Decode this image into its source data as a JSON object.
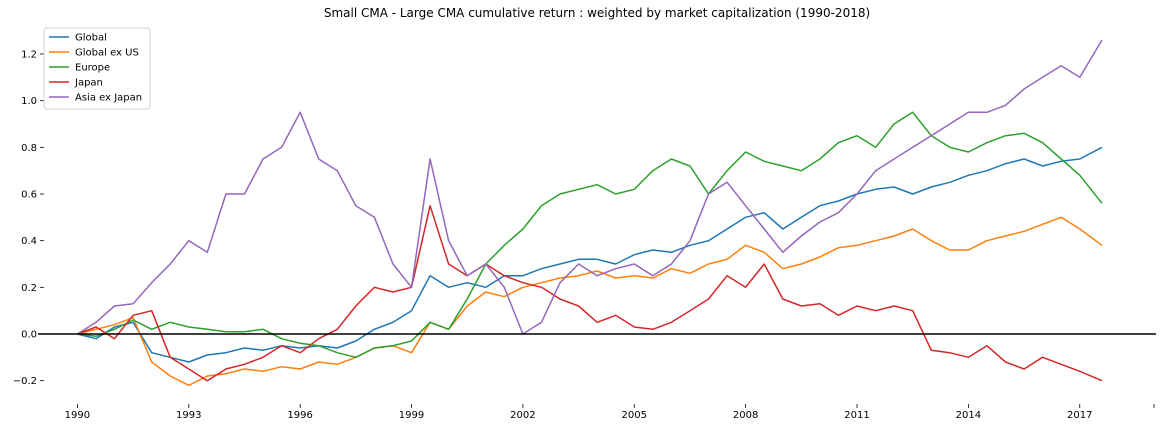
{
  "chart_data": {
    "type": "line",
    "title": "Small CMA - Large CMA cumulative return : weighted by market capitalization (1990-2018)",
    "xlabel": "",
    "ylabel": "",
    "x_range": [
      1989.1,
      2019.0
    ],
    "ylim": [
      -0.3,
      1.32
    ],
    "x_ticks": [
      1990,
      1993,
      1996,
      1999,
      2002,
      2005,
      2008,
      2011,
      2014,
      2017
    ],
    "y_ticks": [
      -0.2,
      0.0,
      0.2,
      0.4,
      0.6,
      0.8,
      1.0,
      1.2
    ],
    "y_tick_labels": [
      "−0.2",
      "0.0",
      "0.2",
      "0.4",
      "0.6",
      "0.8",
      "1.0",
      "1.2"
    ],
    "zero_line": true,
    "grid": false,
    "legend_position": "top-left",
    "series": [
      {
        "name": "Global",
        "color": "#1f77b4",
        "x": [
          1990.0,
          1990.5,
          1991.0,
          1991.5,
          1992.0,
          1992.5,
          1993.0,
          1993.5,
          1994.0,
          1994.5,
          1995.0,
          1995.5,
          1996.0,
          1996.5,
          1997.0,
          1997.5,
          1998.0,
          1998.5,
          1999.0,
          1999.5,
          2000.0,
          2000.5,
          2001.0,
          2001.5,
          2002.0,
          2002.5,
          2003.0,
          2003.5,
          2004.0,
          2004.5,
          2005.0,
          2005.5,
          2006.0,
          2006.5,
          2007.0,
          2007.5,
          2008.0,
          2008.5,
          2009.0,
          2009.5,
          2010.0,
          2010.5,
          2011.0,
          2011.5,
          2012.0,
          2012.5,
          2013.0,
          2013.5,
          2014.0,
          2014.5,
          2015.0,
          2015.5,
          2016.0,
          2016.5,
          2017.0,
          2017.6
        ],
        "values": [
          0.0,
          -0.02,
          0.03,
          0.05,
          -0.08,
          -0.1,
          -0.12,
          -0.09,
          -0.08,
          -0.06,
          -0.07,
          -0.05,
          -0.06,
          -0.05,
          -0.06,
          -0.03,
          0.02,
          0.05,
          0.1,
          0.25,
          0.2,
          0.22,
          0.2,
          0.25,
          0.25,
          0.28,
          0.3,
          0.32,
          0.32,
          0.3,
          0.34,
          0.36,
          0.35,
          0.38,
          0.4,
          0.45,
          0.5,
          0.52,
          0.45,
          0.5,
          0.55,
          0.57,
          0.6,
          0.62,
          0.63,
          0.6,
          0.63,
          0.65,
          0.68,
          0.7,
          0.73,
          0.75,
          0.72,
          0.74,
          0.75,
          0.8
        ]
      },
      {
        "name": "Global ex US",
        "color": "#ff7f0e",
        "x": [
          1990.0,
          1990.5,
          1991.0,
          1991.5,
          1992.0,
          1992.5,
          1993.0,
          1993.5,
          1994.0,
          1994.5,
          1995.0,
          1995.5,
          1996.0,
          1996.5,
          1997.0,
          1997.5,
          1998.0,
          1998.5,
          1999.0,
          1999.5,
          2000.0,
          2000.5,
          2001.0,
          2001.5,
          2002.0,
          2002.5,
          2003.0,
          2003.5,
          2004.0,
          2004.5,
          2005.0,
          2005.5,
          2006.0,
          2006.5,
          2007.0,
          2007.5,
          2008.0,
          2008.5,
          2009.0,
          2009.5,
          2010.0,
          2010.5,
          2011.0,
          2011.5,
          2012.0,
          2012.5,
          2013.0,
          2013.5,
          2014.0,
          2014.5,
          2015.0,
          2015.5,
          2016.0,
          2016.5,
          2017.0,
          2017.6
        ],
        "values": [
          0.0,
          0.02,
          0.04,
          0.07,
          -0.12,
          -0.18,
          -0.22,
          -0.18,
          -0.17,
          -0.15,
          -0.16,
          -0.14,
          -0.15,
          -0.12,
          -0.13,
          -0.1,
          -0.06,
          -0.05,
          -0.08,
          0.05,
          0.02,
          0.12,
          0.18,
          0.16,
          0.2,
          0.22,
          0.24,
          0.25,
          0.27,
          0.24,
          0.25,
          0.24,
          0.28,
          0.26,
          0.3,
          0.32,
          0.38,
          0.35,
          0.28,
          0.3,
          0.33,
          0.37,
          0.38,
          0.4,
          0.42,
          0.45,
          0.4,
          0.36,
          0.36,
          0.4,
          0.42,
          0.44,
          0.47,
          0.5,
          0.45,
          0.38
        ]
      },
      {
        "name": "Europe",
        "color": "#2ca02c",
        "x": [
          1990.0,
          1990.5,
          1991.0,
          1991.5,
          1992.0,
          1992.5,
          1993.0,
          1993.5,
          1994.0,
          1994.5,
          1995.0,
          1995.5,
          1996.0,
          1996.5,
          1997.0,
          1997.5,
          1998.0,
          1998.5,
          1999.0,
          1999.5,
          2000.0,
          2000.5,
          2001.0,
          2001.5,
          2002.0,
          2002.5,
          2003.0,
          2003.5,
          2004.0,
          2004.5,
          2005.0,
          2005.5,
          2006.0,
          2006.5,
          2007.0,
          2007.5,
          2008.0,
          2008.5,
          2009.0,
          2009.5,
          2010.0,
          2010.5,
          2011.0,
          2011.5,
          2012.0,
          2012.5,
          2013.0,
          2013.5,
          2014.0,
          2014.5,
          2015.0,
          2015.5,
          2016.0,
          2016.5,
          2017.0,
          2017.6
        ],
        "values": [
          0.0,
          -0.01,
          0.02,
          0.06,
          0.02,
          0.05,
          0.03,
          0.02,
          0.01,
          0.01,
          0.02,
          -0.02,
          -0.04,
          -0.05,
          -0.08,
          -0.1,
          -0.06,
          -0.05,
          -0.03,
          0.05,
          0.02,
          0.15,
          0.3,
          0.38,
          0.45,
          0.55,
          0.6,
          0.62,
          0.64,
          0.6,
          0.62,
          0.7,
          0.75,
          0.72,
          0.6,
          0.7,
          0.78,
          0.74,
          0.72,
          0.7,
          0.75,
          0.82,
          0.85,
          0.8,
          0.9,
          0.95,
          0.85,
          0.8,
          0.78,
          0.82,
          0.85,
          0.86,
          0.82,
          0.75,
          0.68,
          0.56
        ]
      },
      {
        "name": "Japan",
        "color": "#d62728",
        "x": [
          1990.0,
          1990.5,
          1991.0,
          1991.5,
          1992.0,
          1992.5,
          1993.0,
          1993.5,
          1994.0,
          1994.5,
          1995.0,
          1995.5,
          1996.0,
          1996.5,
          1997.0,
          1997.5,
          1998.0,
          1998.5,
          1999.0,
          1999.5,
          2000.0,
          2000.5,
          2001.0,
          2001.5,
          2002.0,
          2002.5,
          2003.0,
          2003.5,
          2004.0,
          2004.5,
          2005.0,
          2005.5,
          2006.0,
          2006.5,
          2007.0,
          2007.5,
          2008.0,
          2008.5,
          2009.0,
          2009.5,
          2010.0,
          2010.5,
          2011.0,
          2011.5,
          2012.0,
          2012.5,
          2013.0,
          2013.5,
          2014.0,
          2014.5,
          2015.0,
          2015.5,
          2016.0,
          2016.5,
          2017.0,
          2017.6
        ],
        "values": [
          0.0,
          0.03,
          -0.02,
          0.08,
          0.1,
          -0.1,
          -0.15,
          -0.2,
          -0.15,
          -0.13,
          -0.1,
          -0.05,
          -0.08,
          -0.02,
          0.02,
          0.12,
          0.2,
          0.18,
          0.2,
          0.55,
          0.3,
          0.25,
          0.3,
          0.25,
          0.22,
          0.2,
          0.15,
          0.12,
          0.05,
          0.08,
          0.03,
          0.02,
          0.05,
          0.1,
          0.15,
          0.25,
          0.2,
          0.3,
          0.15,
          0.12,
          0.13,
          0.08,
          0.12,
          0.1,
          0.12,
          0.1,
          -0.07,
          -0.08,
          -0.1,
          -0.05,
          -0.12,
          -0.15,
          -0.1,
          -0.13,
          -0.16,
          -0.2
        ]
      },
      {
        "name": "Asia ex Japan",
        "color": "#9467bd",
        "x": [
          1990.0,
          1990.5,
          1991.0,
          1991.5,
          1992.0,
          1992.5,
          1993.0,
          1993.5,
          1994.0,
          1994.5,
          1995.0,
          1995.5,
          1996.0,
          1996.5,
          1997.0,
          1997.5,
          1998.0,
          1998.5,
          1999.0,
          1999.5,
          2000.0,
          2000.5,
          2001.0,
          2001.5,
          2002.0,
          2002.5,
          2003.0,
          2003.5,
          2004.0,
          2004.5,
          2005.0,
          2005.5,
          2006.0,
          2006.5,
          2007.0,
          2007.5,
          2008.0,
          2008.5,
          2009.0,
          2009.5,
          2010.0,
          2010.5,
          2011.0,
          2011.5,
          2012.0,
          2012.5,
          2013.0,
          2013.5,
          2014.0,
          2014.5,
          2015.0,
          2015.5,
          2016.0,
          2016.5,
          2017.0,
          2017.6
        ],
        "values": [
          0.0,
          0.05,
          0.12,
          0.13,
          0.22,
          0.3,
          0.4,
          0.35,
          0.6,
          0.6,
          0.75,
          0.8,
          0.95,
          0.75,
          0.7,
          0.55,
          0.5,
          0.3,
          0.2,
          0.75,
          0.4,
          0.25,
          0.3,
          0.2,
          0.0,
          0.05,
          0.22,
          0.3,
          0.25,
          0.28,
          0.3,
          0.25,
          0.3,
          0.4,
          0.6,
          0.65,
          0.55,
          0.45,
          0.35,
          0.42,
          0.48,
          0.52,
          0.6,
          0.7,
          0.75,
          0.8,
          0.85,
          0.9,
          0.95,
          0.95,
          0.98,
          1.05,
          1.1,
          1.15,
          1.1,
          1.26
        ]
      }
    ]
  }
}
